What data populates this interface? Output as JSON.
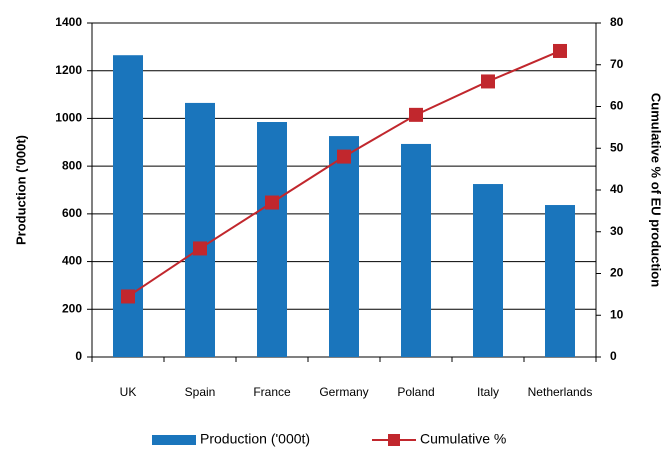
{
  "chart_data": {
    "type": "bar-line",
    "categories": [
      "UK",
      "Spain",
      "France",
      "Germany",
      "Poland",
      "Italy",
      "Netherlands"
    ],
    "series": [
      {
        "name": "Production ('000t)",
        "type": "bar",
        "color": "#1a75bc",
        "values": [
          1265,
          1065,
          985,
          926,
          893,
          725,
          637
        ]
      },
      {
        "name": "Cumulative %",
        "type": "line",
        "axis": "y2",
        "color": "#c1272d",
        "values": [
          14.5,
          26,
          37,
          48,
          58,
          66,
          73.3
        ]
      }
    ],
    "ylabel": "Production ('000t)",
    "y2label": "Cumulative % of EU production",
    "ylim": [
      0,
      1400
    ],
    "yticks": [
      0,
      200,
      400,
      600,
      800,
      1000,
      1200,
      1400
    ],
    "y2lim": [
      0,
      80
    ],
    "y2ticks": [
      0,
      10,
      20,
      30,
      40,
      50,
      60,
      70,
      80
    ],
    "grid": true,
    "legend": "bottom"
  }
}
